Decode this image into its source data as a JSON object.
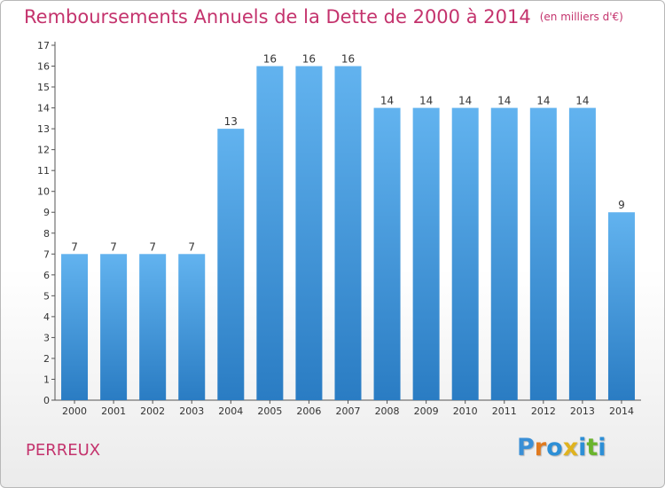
{
  "title": "Remboursements Annuels de la Dette de 2000 à 2014",
  "unit_note": "(en milliers d'€)",
  "location": "PERREUX",
  "logo": {
    "text": "Proxiti",
    "letter_colors": [
      "#3a8fd6",
      "#e07a1f",
      "#2d8fd6",
      "#e0b31f",
      "#2d8fd6",
      "#6ab42d",
      "#2d8fd6"
    ]
  },
  "colors": {
    "title": "#c4336d",
    "bar_top": "#62b3ef",
    "bar_bottom": "#2a7cc3"
  },
  "chart_data": {
    "type": "bar",
    "categories": [
      "2000",
      "2001",
      "2002",
      "2003",
      "2004",
      "2005",
      "2006",
      "2007",
      "2008",
      "2009",
      "2010",
      "2011",
      "2012",
      "2013",
      "2014"
    ],
    "values": [
      7,
      7,
      7,
      7,
      13,
      16,
      16,
      16,
      14,
      14,
      14,
      14,
      14,
      14,
      9
    ],
    "ylim": [
      0,
      17
    ],
    "yticks": [
      0,
      1,
      2,
      3,
      4,
      5,
      6,
      7,
      8,
      9,
      10,
      11,
      12,
      13,
      14,
      15,
      16,
      17
    ],
    "grid": false,
    "legend": "none"
  }
}
